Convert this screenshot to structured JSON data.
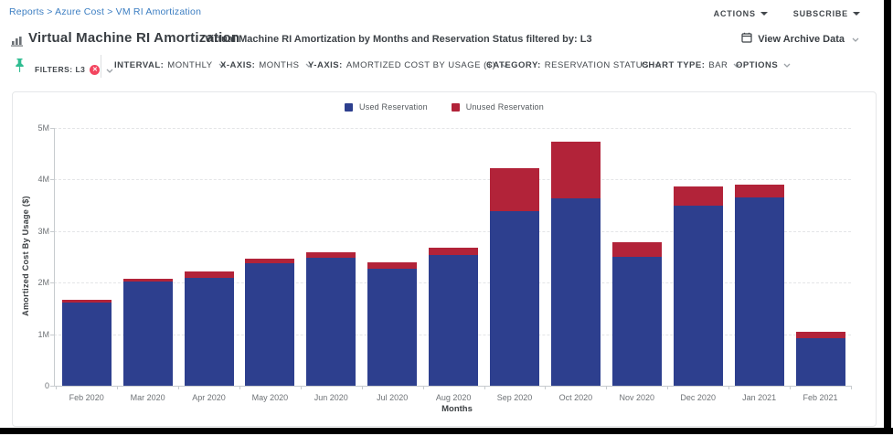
{
  "breadcrumb": "Reports > Azure Cost > VM RI Amortization",
  "topbar": {
    "actions_label": "ACTIONS",
    "subscribe_label": "SUBSCRIBE"
  },
  "header": {
    "title": "Virtual Machine RI Amortization",
    "subtitle": "Virtual Machine RI Amortization by Months and Reservation Status filtered by: L3",
    "archive_label": "View Archive Data"
  },
  "toolbar": {
    "filters_label": "FILTERS: L3",
    "controls": [
      {
        "label": "INTERVAL:",
        "value": "MONTHLY"
      },
      {
        "label": "X-AXIS:",
        "value": "MONTHS"
      },
      {
        "label": "Y-AXIS:",
        "value": "AMORTIZED COST BY USAGE ($)"
      },
      {
        "label": "CATEGORY:",
        "value": "RESERVATION STATUS"
      },
      {
        "label": "CHART TYPE:",
        "value": "BAR"
      },
      {
        "label": "OPTIONS",
        "value": ""
      }
    ]
  },
  "colors": {
    "used_reservation": "#2d3f8e",
    "unused_reservation": "#b22339",
    "breadcrumb_link": "#3c7ec2",
    "pin_green": "#31bd92",
    "filter_remove_red": "#f3455f"
  },
  "chart_data": {
    "type": "bar",
    "stacked": true,
    "categories": [
      "Feb 2020",
      "Mar 2020",
      "Apr 2020",
      "May 2020",
      "Jun 2020",
      "Jul 2020",
      "Aug 2020",
      "Sep 2020",
      "Oct 2020",
      "Nov 2020",
      "Dec 2020",
      "Jan 2021",
      "Feb 2021"
    ],
    "series": [
      {
        "name": "Used Reservation",
        "color": "#2d3f8e",
        "values": [
          1.62,
          2.03,
          2.09,
          2.37,
          2.48,
          2.27,
          2.54,
          3.38,
          3.64,
          2.5,
          3.5,
          3.66,
          0.93
        ]
      },
      {
        "name": "Unused Reservation",
        "color": "#b22339",
        "values": [
          0.04,
          0.05,
          0.13,
          0.09,
          0.1,
          0.13,
          0.14,
          0.84,
          1.1,
          0.28,
          0.36,
          0.24,
          0.12
        ]
      }
    ],
    "value_unit": "millions of $",
    "xlabel": "Months",
    "ylabel": "Amortized Cost By Usage ($)",
    "ylim": [
      0,
      5
    ],
    "ytick_labels": [
      "0",
      "1M",
      "2M",
      "3M",
      "4M",
      "5M"
    ],
    "legend_position": "top-center",
    "grid": "horizontal-dashed"
  }
}
